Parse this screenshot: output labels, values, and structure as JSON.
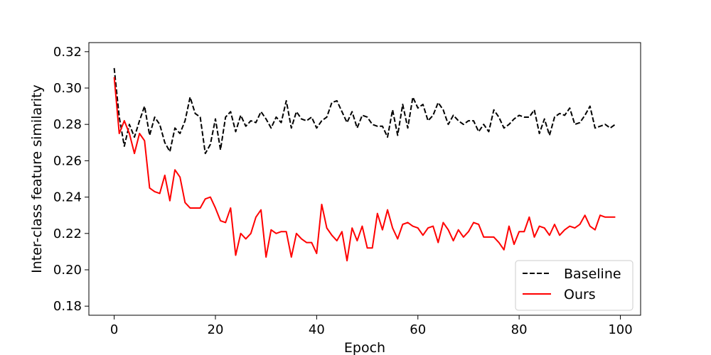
{
  "chart_data": {
    "type": "line",
    "title": "",
    "xlabel": "Epoch",
    "ylabel": "Inter-class feature similarity",
    "xlim": [
      -5,
      104
    ],
    "ylim": [
      0.175,
      0.325
    ],
    "xticks": [
      0,
      20,
      40,
      60,
      80,
      100
    ],
    "yticks": [
      0.18,
      0.2,
      0.22,
      0.24,
      0.26,
      0.28,
      0.3,
      0.32
    ],
    "xtick_labels": [
      "0",
      "20",
      "40",
      "60",
      "80",
      "100"
    ],
    "ytick_labels": [
      "0.18",
      "0.20",
      "0.22",
      "0.24",
      "0.26",
      "0.28",
      "0.30",
      "0.32"
    ],
    "grid": false,
    "legend_position": "lower-right",
    "x": [
      0,
      1,
      2,
      3,
      4,
      5,
      6,
      7,
      8,
      9,
      10,
      11,
      12,
      13,
      14,
      15,
      16,
      17,
      18,
      19,
      20,
      21,
      22,
      23,
      24,
      25,
      26,
      27,
      28,
      29,
      30,
      31,
      32,
      33,
      34,
      35,
      36,
      37,
      38,
      39,
      40,
      41,
      42,
      43,
      44,
      45,
      46,
      47,
      48,
      49,
      50,
      51,
      52,
      53,
      54,
      55,
      56,
      57,
      58,
      59,
      60,
      61,
      62,
      63,
      64,
      65,
      66,
      67,
      68,
      69,
      70,
      71,
      72,
      73,
      74,
      75,
      76,
      77,
      78,
      79,
      80,
      81,
      82,
      83,
      84,
      85,
      86,
      87,
      88,
      89,
      90,
      91,
      92,
      93,
      94,
      95,
      96,
      97,
      98,
      99
    ],
    "series": [
      {
        "name": "Baseline",
        "color": "#000000",
        "style": "dashed",
        "values": [
          0.311,
          0.284,
          0.268,
          0.28,
          0.273,
          0.282,
          0.29,
          0.274,
          0.284,
          0.28,
          0.27,
          0.265,
          0.278,
          0.275,
          0.282,
          0.295,
          0.286,
          0.284,
          0.264,
          0.269,
          0.283,
          0.266,
          0.284,
          0.287,
          0.276,
          0.285,
          0.279,
          0.282,
          0.281,
          0.287,
          0.283,
          0.278,
          0.284,
          0.281,
          0.293,
          0.278,
          0.287,
          0.283,
          0.282,
          0.284,
          0.278,
          0.282,
          0.284,
          0.292,
          0.293,
          0.287,
          0.281,
          0.287,
          0.278,
          0.285,
          0.284,
          0.28,
          0.279,
          0.279,
          0.273,
          0.288,
          0.274,
          0.291,
          0.278,
          0.295,
          0.289,
          0.291,
          0.282,
          0.285,
          0.292,
          0.288,
          0.28,
          0.285,
          0.282,
          0.28,
          0.282,
          0.282,
          0.276,
          0.28,
          0.276,
          0.288,
          0.284,
          0.278,
          0.28,
          0.283,
          0.285,
          0.284,
          0.284,
          0.288,
          0.275,
          0.283,
          0.274,
          0.284,
          0.286,
          0.285,
          0.289,
          0.28,
          0.281,
          0.285,
          0.29,
          0.278,
          0.279,
          0.28,
          0.278,
          0.28
        ]
      },
      {
        "name": "Ours",
        "color": "#ff0000",
        "style": "solid",
        "values": [
          0.306,
          0.275,
          0.282,
          0.275,
          0.264,
          0.275,
          0.271,
          0.245,
          0.243,
          0.242,
          0.252,
          0.238,
          0.255,
          0.251,
          0.237,
          0.234,
          0.234,
          0.234,
          0.239,
          0.24,
          0.234,
          0.227,
          0.226,
          0.234,
          0.208,
          0.22,
          0.217,
          0.22,
          0.229,
          0.233,
          0.207,
          0.222,
          0.22,
          0.221,
          0.221,
          0.207,
          0.22,
          0.217,
          0.215,
          0.215,
          0.209,
          0.236,
          0.223,
          0.219,
          0.216,
          0.221,
          0.205,
          0.223,
          0.216,
          0.224,
          0.212,
          0.212,
          0.231,
          0.222,
          0.233,
          0.223,
          0.217,
          0.225,
          0.226,
          0.224,
          0.223,
          0.219,
          0.223,
          0.224,
          0.215,
          0.226,
          0.222,
          0.216,
          0.222,
          0.218,
          0.221,
          0.226,
          0.225,
          0.218,
          0.218,
          0.218,
          0.215,
          0.211,
          0.224,
          0.214,
          0.221,
          0.221,
          0.229,
          0.218,
          0.224,
          0.223,
          0.219,
          0.225,
          0.219,
          0.222,
          0.224,
          0.223,
          0.225,
          0.23,
          0.224,
          0.222,
          0.23,
          0.229,
          0.229,
          0.229
        ]
      }
    ]
  }
}
